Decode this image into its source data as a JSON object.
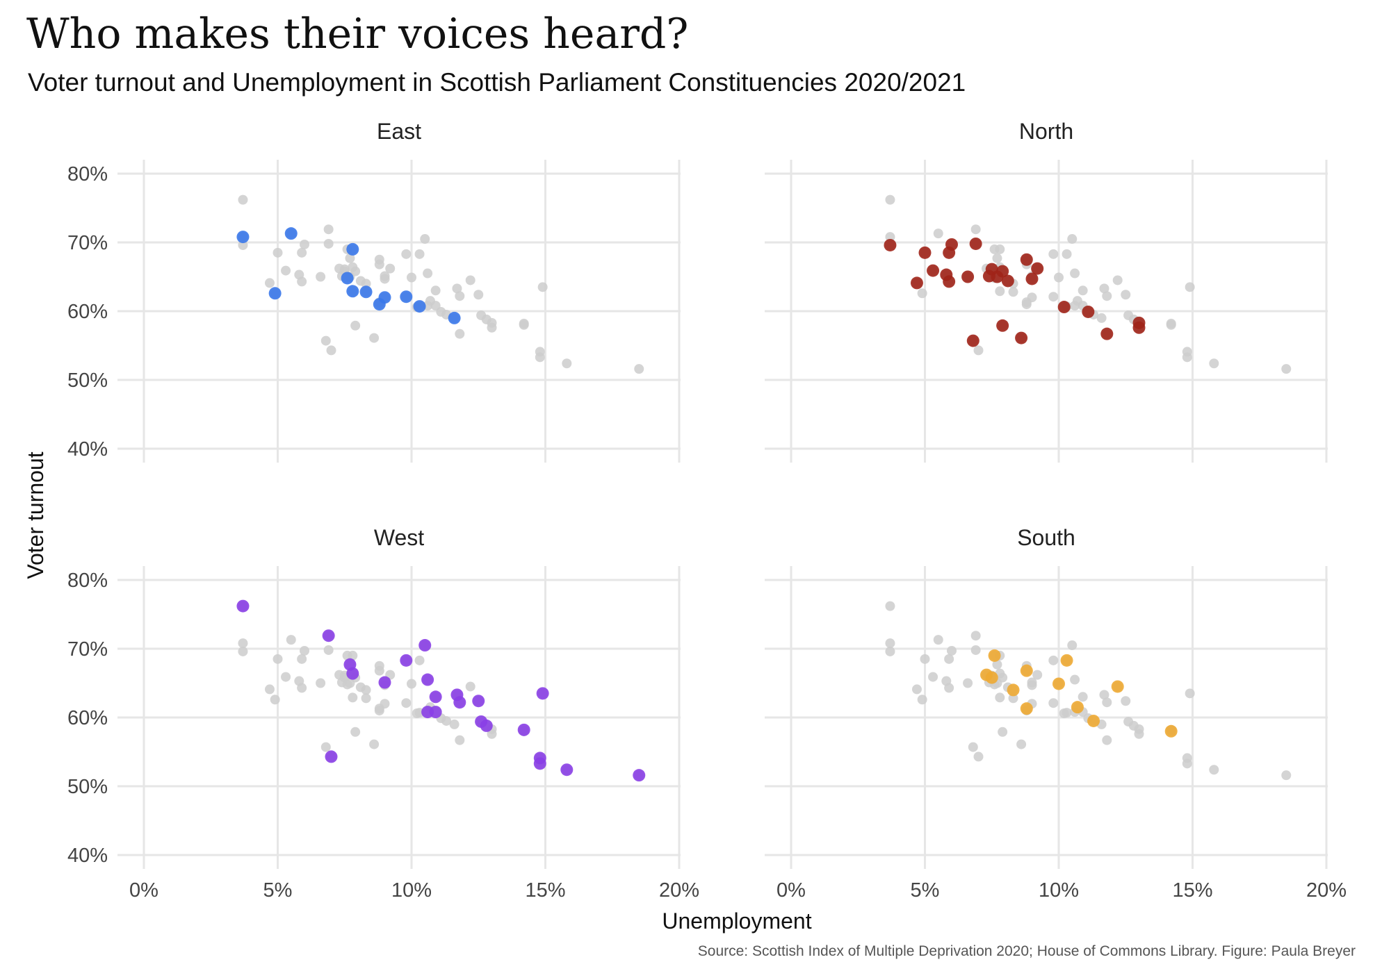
{
  "title": "Who makes their voices heard?",
  "subtitle": "Voter turnout and Unemployment in Scottish Parliament Constituencies 2020/2021",
  "caption": "Source: Scottish Index of Multiple Deprivation 2020; House of Commons Library. Figure: Paula Breyer",
  "chart_data": {
    "type": "scatter",
    "facets": [
      "East",
      "North",
      "West",
      "South"
    ],
    "xlabel": "Unemployment",
    "ylabel": "Voter turnout",
    "x_unit": "%",
    "y_unit": "%",
    "xlim": [
      0,
      20
    ],
    "ylim": [
      40,
      80
    ],
    "x_ticks": [
      0,
      5,
      10,
      15,
      20
    ],
    "y_ticks": [
      40,
      50,
      60,
      70,
      80
    ],
    "x_tick_labels": [
      "0%",
      "5%",
      "10%",
      "15%",
      "20%"
    ],
    "y_tick_labels": [
      "40%",
      "50%",
      "60%",
      "70%",
      "80%"
    ],
    "grid": true,
    "legend": "none",
    "background_color": "#cccccc",
    "regions": [
      {
        "name": "East",
        "color": "#3a78ea",
        "points": [
          {
            "x": 3.7,
            "y": 70.8
          },
          {
            "x": 4.9,
            "y": 62.6
          },
          {
            "x": 5.5,
            "y": 71.3
          },
          {
            "x": 7.6,
            "y": 64.8
          },
          {
            "x": 7.8,
            "y": 62.9
          },
          {
            "x": 7.8,
            "y": 69.0
          },
          {
            "x": 8.3,
            "y": 62.8
          },
          {
            "x": 8.8,
            "y": 61.0
          },
          {
            "x": 9.0,
            "y": 62.0
          },
          {
            "x": 9.8,
            "y": 62.1
          },
          {
            "x": 10.3,
            "y": 60.7
          },
          {
            "x": 11.6,
            "y": 59.0
          }
        ]
      },
      {
        "name": "North",
        "color": "#a02418",
        "points": [
          {
            "x": 3.7,
            "y": 69.6
          },
          {
            "x": 4.7,
            "y": 64.1
          },
          {
            "x": 5.0,
            "y": 68.5
          },
          {
            "x": 5.3,
            "y": 65.9
          },
          {
            "x": 5.8,
            "y": 65.3
          },
          {
            "x": 5.9,
            "y": 64.3
          },
          {
            "x": 5.9,
            "y": 68.5
          },
          {
            "x": 6.0,
            "y": 69.7
          },
          {
            "x": 6.6,
            "y": 65.0
          },
          {
            "x": 6.8,
            "y": 55.7
          },
          {
            "x": 6.9,
            "y": 69.8
          },
          {
            "x": 7.4,
            "y": 65.1
          },
          {
            "x": 7.5,
            "y": 66.1
          },
          {
            "x": 7.7,
            "y": 65.0
          },
          {
            "x": 7.9,
            "y": 65.8
          },
          {
            "x": 7.9,
            "y": 57.9
          },
          {
            "x": 8.1,
            "y": 64.4
          },
          {
            "x": 8.6,
            "y": 56.1
          },
          {
            "x": 8.8,
            "y": 67.5
          },
          {
            "x": 9.0,
            "y": 64.7
          },
          {
            "x": 9.2,
            "y": 66.2
          },
          {
            "x": 10.2,
            "y": 60.6
          },
          {
            "x": 11.1,
            "y": 59.9
          },
          {
            "x": 11.8,
            "y": 56.7
          },
          {
            "x": 13.0,
            "y": 58.3
          },
          {
            "x": 13.0,
            "y": 57.6
          }
        ]
      },
      {
        "name": "West",
        "color": "#8a3fe6",
        "points": [
          {
            "x": 3.7,
            "y": 76.2
          },
          {
            "x": 6.9,
            "y": 71.9
          },
          {
            "x": 7.0,
            "y": 54.3
          },
          {
            "x": 7.7,
            "y": 67.7
          },
          {
            "x": 7.8,
            "y": 66.4
          },
          {
            "x": 9.0,
            "y": 65.1
          },
          {
            "x": 9.8,
            "y": 68.3
          },
          {
            "x": 10.5,
            "y": 70.5
          },
          {
            "x": 10.6,
            "y": 65.5
          },
          {
            "x": 10.6,
            "y": 60.8
          },
          {
            "x": 10.9,
            "y": 63.0
          },
          {
            "x": 10.9,
            "y": 60.8
          },
          {
            "x": 11.7,
            "y": 63.3
          },
          {
            "x": 11.8,
            "y": 62.2
          },
          {
            "x": 12.5,
            "y": 62.4
          },
          {
            "x": 12.6,
            "y": 59.4
          },
          {
            "x": 12.8,
            "y": 58.8
          },
          {
            "x": 14.2,
            "y": 58.2
          },
          {
            "x": 14.8,
            "y": 54.1
          },
          {
            "x": 14.8,
            "y": 53.3
          },
          {
            "x": 14.9,
            "y": 63.5
          },
          {
            "x": 15.8,
            "y": 52.4
          },
          {
            "x": 18.5,
            "y": 51.6
          }
        ]
      },
      {
        "name": "South",
        "color": "#eeaa33",
        "points": [
          {
            "x": 7.3,
            "y": 66.2
          },
          {
            "x": 7.5,
            "y": 65.8
          },
          {
            "x": 7.6,
            "y": 69.0
          },
          {
            "x": 8.3,
            "y": 64.0
          },
          {
            "x": 8.8,
            "y": 66.8
          },
          {
            "x": 8.8,
            "y": 61.3
          },
          {
            "x": 10.0,
            "y": 64.9
          },
          {
            "x": 10.3,
            "y": 68.3
          },
          {
            "x": 10.7,
            "y": 61.5
          },
          {
            "x": 11.3,
            "y": 59.5
          },
          {
            "x": 12.2,
            "y": 64.5
          },
          {
            "x": 14.2,
            "y": 58.0
          }
        ]
      }
    ]
  }
}
